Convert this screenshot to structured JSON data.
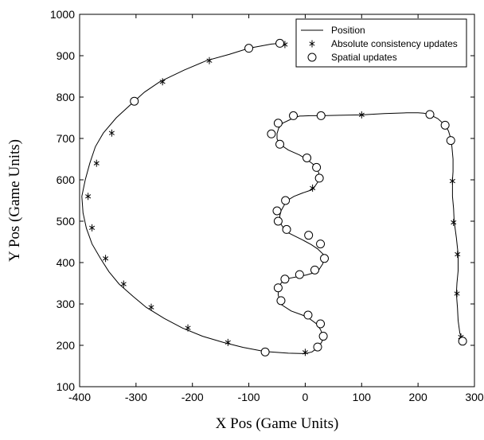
{
  "chart_data": {
    "type": "line",
    "title": "",
    "xlabel": "X Pos (Game Units)",
    "ylabel": "Y Pos (Game Units)",
    "xlim": [
      -400,
      300
    ],
    "ylim": [
      100,
      1000
    ],
    "xticks": [
      "-400",
      "-300",
      "-200",
      "-100",
      "0",
      "100",
      "200",
      "300"
    ],
    "yticks": [
      "100",
      "200",
      "300",
      "400",
      "500",
      "600",
      "700",
      "800",
      "900",
      "1000"
    ],
    "grid": false,
    "legend_position": "top-right",
    "series": [
      {
        "name": "Position",
        "style": "line",
        "color": "#000000",
        "points": [
          [
            -43,
            930
          ],
          [
            -60,
            928
          ],
          [
            -100,
            918
          ],
          [
            -135,
            903
          ],
          [
            -175,
            888
          ],
          [
            -215,
            865
          ],
          [
            -258,
            837
          ],
          [
            -285,
            812
          ],
          [
            -303,
            790
          ],
          [
            -335,
            750
          ],
          [
            -358,
            713
          ],
          [
            -372,
            680
          ],
          [
            -382,
            640
          ],
          [
            -390,
            600
          ],
          [
            -396,
            560
          ],
          [
            -394,
            520
          ],
          [
            -388,
            483
          ],
          [
            -378,
            445
          ],
          [
            -363,
            410
          ],
          [
            -348,
            378
          ],
          [
            -330,
            348
          ],
          [
            -305,
            318
          ],
          [
            -282,
            292
          ],
          [
            -250,
            265
          ],
          [
            -218,
            242
          ],
          [
            -182,
            222
          ],
          [
            -145,
            207
          ],
          [
            -110,
            195
          ],
          [
            -72,
            185
          ],
          [
            -30,
            181
          ],
          [
            0,
            180
          ],
          [
            12,
            184
          ],
          [
            24,
            196
          ],
          [
            30,
            210
          ],
          [
            32,
            222
          ],
          [
            27,
            238
          ],
          [
            20,
            252
          ],
          [
            5,
            267
          ],
          [
            -5,
            273
          ],
          [
            -25,
            283
          ],
          [
            -42,
            298
          ],
          [
            -45,
            308
          ],
          [
            -48,
            322
          ],
          [
            -47,
            340
          ],
          [
            -43,
            350
          ],
          [
            -36,
            360
          ],
          [
            -10,
            367
          ],
          [
            2,
            370
          ],
          [
            17,
            376
          ],
          [
            24,
            382
          ],
          [
            31,
            397
          ],
          [
            34,
            410
          ],
          [
            32,
            420
          ],
          [
            22,
            433
          ],
          [
            11,
            443
          ],
          [
            -5,
            455
          ],
          [
            -20,
            465
          ],
          [
            -30,
            472
          ],
          [
            -37,
            480
          ],
          [
            -43,
            493
          ],
          [
            -45,
            500
          ],
          [
            -45,
            513
          ],
          [
            -43,
            525
          ],
          [
            -38,
            537
          ],
          [
            -33,
            549
          ],
          [
            -20,
            560
          ],
          [
            -5,
            568
          ],
          [
            10,
            575
          ],
          [
            15,
            580
          ],
          [
            22,
            594
          ],
          [
            25,
            604
          ],
          [
            24,
            617
          ],
          [
            20,
            630
          ],
          [
            12,
            640
          ],
          [
            2,
            650
          ],
          [
            -10,
            660
          ],
          [
            -30,
            672
          ],
          [
            -45,
            686
          ],
          [
            -50,
            699
          ],
          [
            -50,
            712
          ],
          [
            -47,
            725
          ],
          [
            -40,
            737
          ],
          [
            -20,
            750
          ],
          [
            -10,
            754
          ],
          [
            10,
            755
          ],
          [
            30,
            755
          ],
          [
            60,
            756
          ],
          [
            100,
            757
          ],
          [
            140,
            760
          ],
          [
            180,
            762
          ],
          [
            200,
            762
          ],
          [
            210,
            761
          ],
          [
            220,
            758
          ],
          [
            235,
            748
          ],
          [
            248,
            732
          ],
          [
            254,
            718
          ],
          [
            258,
            700
          ],
          [
            260,
            680
          ],
          [
            262,
            650
          ],
          [
            262,
            620
          ],
          [
            261,
            600
          ],
          [
            261,
            560
          ],
          [
            263,
            530
          ],
          [
            264,
            500
          ],
          [
            268,
            460
          ],
          [
            271,
            420
          ],
          [
            271,
            380
          ],
          [
            269,
            350
          ],
          [
            268,
            325
          ],
          [
            270,
            290
          ],
          [
            271,
            260
          ],
          [
            274,
            230
          ],
          [
            276,
            222
          ],
          [
            279,
            213
          ]
        ]
      },
      {
        "name": "Absolute consistency updates",
        "style": "asterisk",
        "color": "#000000",
        "points": [
          [
            -36,
            927
          ],
          [
            -170,
            888
          ],
          [
            -253,
            837
          ],
          [
            -343,
            713
          ],
          [
            -370,
            640
          ],
          [
            -385,
            560
          ],
          [
            -378,
            484
          ],
          [
            -354,
            410
          ],
          [
            -322,
            348
          ],
          [
            -273,
            292
          ],
          [
            -208,
            242
          ],
          [
            -137,
            207
          ],
          [
            0,
            183
          ],
          [
            13,
            580
          ],
          [
            100,
            757
          ],
          [
            261,
            597
          ],
          [
            263,
            497
          ],
          [
            270,
            420
          ],
          [
            269,
            325
          ],
          [
            276,
            220
          ]
        ]
      },
      {
        "name": "Spatial updates",
        "style": "circle",
        "color": "#000000",
        "points": [
          [
            -45,
            930
          ],
          [
            -100,
            918
          ],
          [
            -303,
            790
          ],
          [
            -71,
            184
          ],
          [
            22,
            196
          ],
          [
            32,
            222
          ],
          [
            27,
            252
          ],
          [
            5,
            273
          ],
          [
            -43,
            308
          ],
          [
            -48,
            339
          ],
          [
            -36,
            360
          ],
          [
            -10,
            371
          ],
          [
            17,
            382
          ],
          [
            34,
            410
          ],
          [
            27,
            445
          ],
          [
            6,
            466
          ],
          [
            -33,
            480
          ],
          [
            -48,
            500
          ],
          [
            -50,
            525
          ],
          [
            -35,
            550
          ],
          [
            25,
            604
          ],
          [
            20,
            630
          ],
          [
            3,
            653
          ],
          [
            -45,
            686
          ],
          [
            -60,
            711
          ],
          [
            -48,
            737
          ],
          [
            -21,
            755
          ],
          [
            28,
            755
          ],
          [
            221,
            758
          ],
          [
            248,
            732
          ],
          [
            258,
            695
          ],
          [
            279,
            210
          ]
        ]
      }
    ]
  }
}
